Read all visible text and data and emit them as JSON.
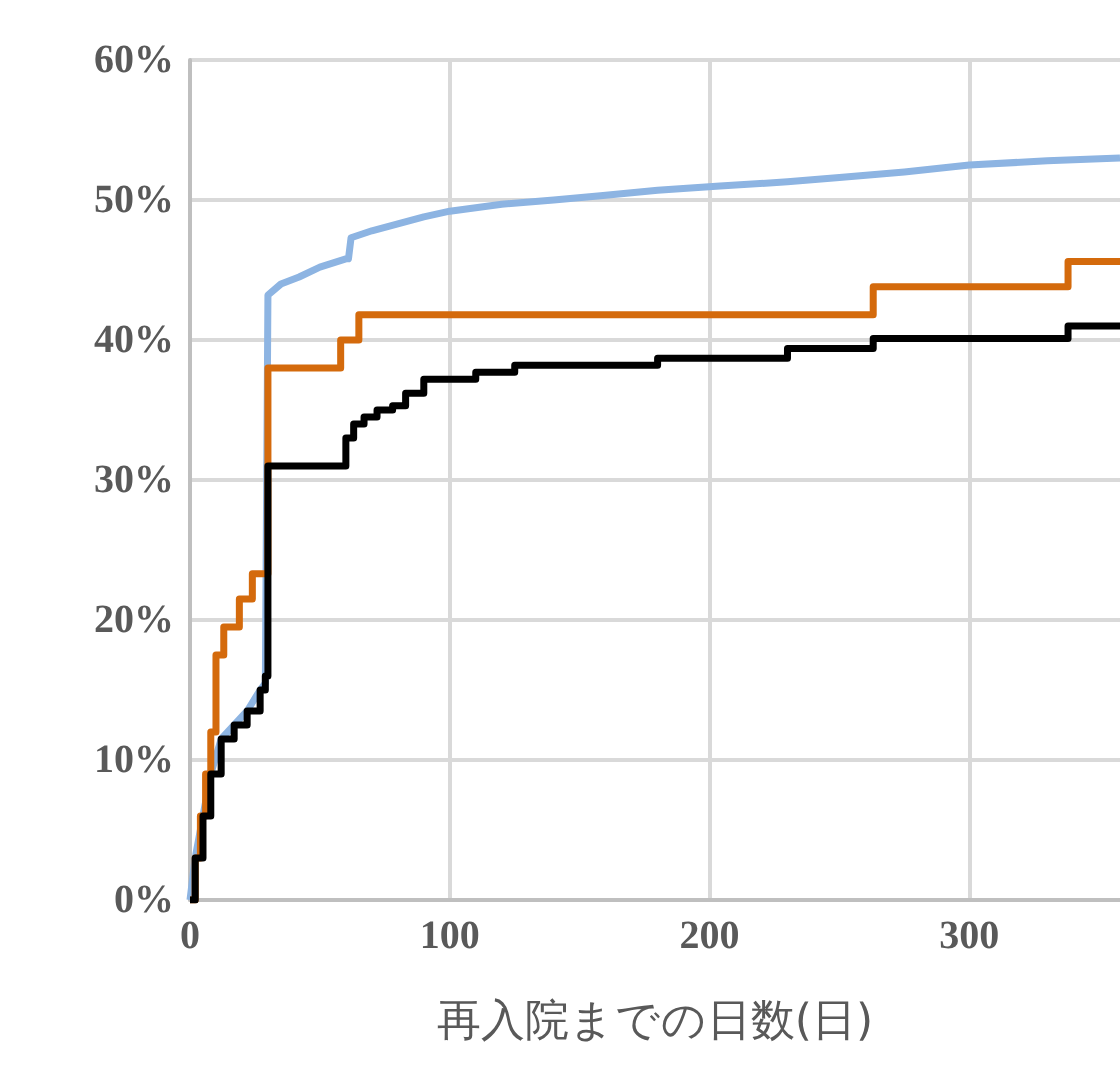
{
  "chart_data": {
    "type": "line",
    "xlabel": "再入院までの日数(日)",
    "xlim": [
      0,
      358
    ],
    "xticks": [
      0,
      100,
      200,
      300
    ],
    "ylim": [
      0,
      60
    ],
    "yticks": [
      {
        "value": 0,
        "label": "0%"
      },
      {
        "value": 10,
        "label": "10%"
      },
      {
        "value": 20,
        "label": "20%"
      },
      {
        "value": 30,
        "label": "30%"
      },
      {
        "value": 40,
        "label": "40%"
      },
      {
        "value": 50,
        "label": "50%"
      },
      {
        "value": 60,
        "label": "60%"
      }
    ],
    "grid": true,
    "marker": "none",
    "line_style": "solid",
    "series": [
      {
        "color": "#8db4e2",
        "x": [
          0,
          2,
          5,
          8,
          12,
          17,
          22,
          27,
          29,
          30,
          35,
          42,
          50,
          60,
          61,
          62,
          70,
          80,
          90,
          100,
          120,
          140,
          158,
          180,
          204,
          230,
          250,
          275,
          300,
          330,
          358
        ],
        "values": [
          0,
          3,
          6,
          9,
          11.5,
          12.5,
          13.5,
          15,
          15.5,
          43.2,
          44,
          44.5,
          45.2,
          45.8,
          45.8,
          47.3,
          47.8,
          48.3,
          48.8,
          49.2,
          49.7,
          50,
          50.3,
          50.7,
          51,
          51.3,
          51.6,
          52,
          52.5,
          52.8,
          53
        ]
      },
      {
        "type": "step",
        "color": "#d46a0c",
        "x": [
          0,
          2,
          4,
          6,
          8,
          10,
          13,
          19,
          24,
          30,
          58,
          65,
          263,
          338,
          358
        ],
        "values": [
          0,
          3,
          6,
          9,
          12,
          17.5,
          19.5,
          21.5,
          23.3,
          38,
          40,
          41.8,
          43.8,
          45.6,
          45.6
        ]
      },
      {
        "type": "step",
        "color": "#000000",
        "x": [
          0,
          2,
          5,
          8,
          12,
          17,
          22,
          27,
          29,
          30,
          60,
          63,
          67,
          72,
          78,
          83,
          90,
          110,
          125,
          180,
          230,
          263,
          338,
          358
        ],
        "values": [
          0,
          3,
          6,
          9,
          11.5,
          12.5,
          13.5,
          15,
          16,
          31,
          33,
          34,
          34.5,
          35,
          35.3,
          36.2,
          37.2,
          37.7,
          38.2,
          38.7,
          39.4,
          40.1,
          41,
          41
        ]
      }
    ]
  }
}
